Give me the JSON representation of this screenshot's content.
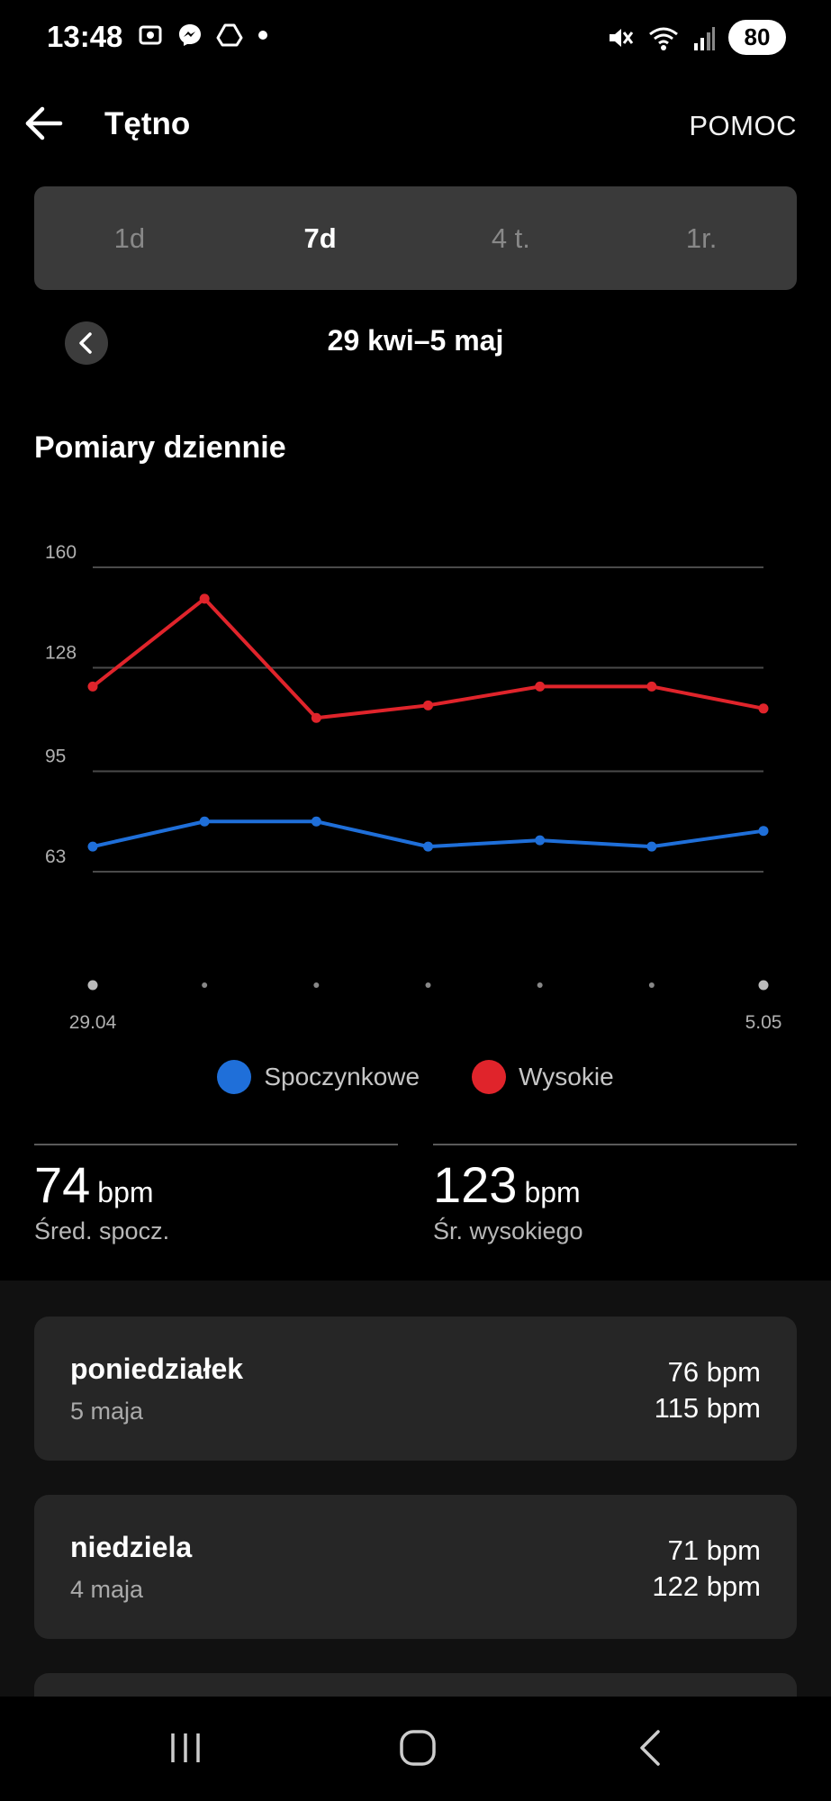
{
  "status_bar": {
    "time": "13:48",
    "battery": "80",
    "left_icons": [
      "screenshot-icon",
      "messenger-icon",
      "drive-icon",
      "dot-icon"
    ],
    "right_icons": [
      "mute-icon",
      "wifi-icon",
      "signal-icon"
    ]
  },
  "header": {
    "title": "Tętno",
    "help_label": "POMOC"
  },
  "tabs": [
    {
      "label": "1d",
      "active": false
    },
    {
      "label": "7d",
      "active": true
    },
    {
      "label": "4 t.",
      "active": false
    },
    {
      "label": "1r.",
      "active": false
    }
  ],
  "date_range": "29 kwi–5 maj",
  "section_title": "Pomiary dziennie",
  "chart_data": {
    "type": "line",
    "x": [
      "29.04",
      "30.04",
      "1.05",
      "2.05",
      "3.05",
      "4.05",
      "5.05"
    ],
    "x_tick_labels": [
      "29.04",
      "5.05"
    ],
    "y_ticks": [
      63,
      95,
      128,
      160
    ],
    "ylim": [
      63,
      160
    ],
    "series": [
      {
        "name": "Spoczynkowe",
        "color": "#1f6fd9",
        "values": [
          71,
          79,
          79,
          71,
          73,
          71,
          76
        ]
      },
      {
        "name": "Wysokie",
        "color": "#e0242b",
        "values": [
          122,
          150,
          112,
          116,
          122,
          122,
          115
        ]
      }
    ],
    "grid": true,
    "legend_position": "bottom"
  },
  "stats": {
    "resting": {
      "value": "74",
      "unit": "bpm",
      "label": "Śred. spocz."
    },
    "high": {
      "value": "123",
      "unit": "bpm",
      "label": "Śr. wysokiego"
    }
  },
  "days": [
    {
      "name": "poniedziałek",
      "date": "5 maja",
      "resting": "76 bpm",
      "high": "115 bpm"
    },
    {
      "name": "niedziela",
      "date": "4 maja",
      "resting": "71 bpm",
      "high": "122 bpm"
    }
  ],
  "nav": [
    "recents-icon",
    "home-icon",
    "back-icon"
  ]
}
